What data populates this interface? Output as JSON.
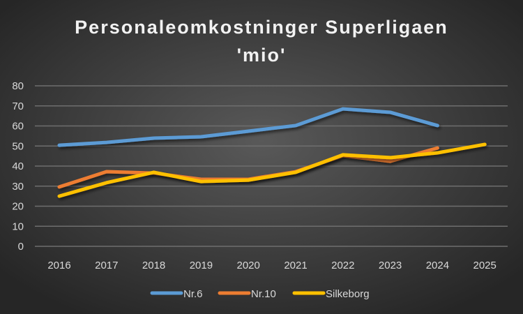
{
  "chart_data": {
    "type": "line",
    "title": [
      "Personaleomkostninger Superligaen",
      "'mio'"
    ],
    "xlabel": "",
    "ylabel": "",
    "categories": [
      "2016",
      "2017",
      "2018",
      "2019",
      "2020",
      "2021",
      "2022",
      "2023",
      "2024",
      "2025"
    ],
    "ylim": [
      0,
      80
    ],
    "yticks": [
      0,
      10,
      20,
      30,
      40,
      50,
      60,
      70,
      80
    ],
    "grid": true,
    "legend_position": "bottom",
    "series": [
      {
        "name": "Nr.6",
        "color": "#5b9bd5",
        "values": [
          50.4,
          51.8,
          53.9,
          54.6,
          57.4,
          60.2,
          68.5,
          66.8,
          60.2,
          null
        ]
      },
      {
        "name": "Nr.10",
        "color": "#ed7d31",
        "values": [
          29.6,
          37.2,
          36.5,
          33.4,
          33.4,
          37.2,
          45.2,
          42.4,
          49.0,
          null
        ]
      },
      {
        "name": "Silkeborg",
        "color": "#ffc000",
        "values": [
          25.0,
          31.7,
          36.9,
          32.3,
          33.0,
          36.9,
          45.6,
          44.2,
          46.6,
          50.8
        ]
      }
    ]
  }
}
